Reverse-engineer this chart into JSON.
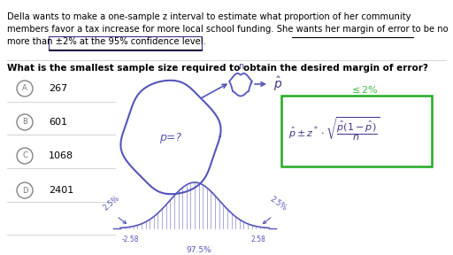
{
  "bg_color": "#ffffff",
  "line1": "Della wants to make a one-sample z interval to estimate what proportion of her community",
  "line2": "members favor a tax increase for more local school funding. She wants her margin of error to be no",
  "line3": "more than ±2% at the 95% confidence level.",
  "question_text": "What is the smallest sample size required to obtain the desired margin of error?",
  "options": [
    {
      "letter": "A",
      "value": "267"
    },
    {
      "letter": "B",
      "value": "601"
    },
    {
      "letter": "C",
      "value": "1068"
    },
    {
      "letter": "D",
      "value": "2401"
    }
  ],
  "fig_width": 5.12,
  "fig_height": 2.88,
  "dpi": 100,
  "purple": "#5555bb",
  "green": "#22aa22",
  "dark_purple": "#443388"
}
